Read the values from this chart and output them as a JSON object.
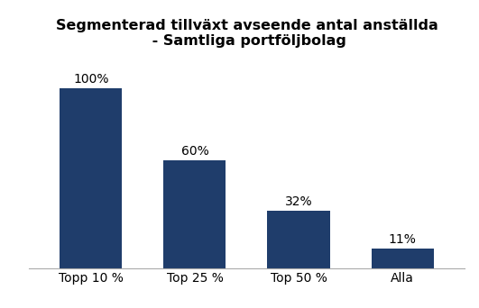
{
  "title": "Segmenterad tillväxt avseende antal anställda\n - Samtliga portföljbolag",
  "categories": [
    "Topp 10 %",
    "Top 25 %",
    "Top 50 %",
    "Alla"
  ],
  "values": [
    100,
    60,
    32,
    11
  ],
  "labels": [
    "100%",
    "60%",
    "32%",
    "11%"
  ],
  "bar_color": "#1F3D6B",
  "background_color": "#ffffff",
  "title_fontsize": 11.5,
  "label_fontsize": 10,
  "tick_fontsize": 10,
  "ylim": [
    0,
    118
  ],
  "bar_width": 0.6
}
